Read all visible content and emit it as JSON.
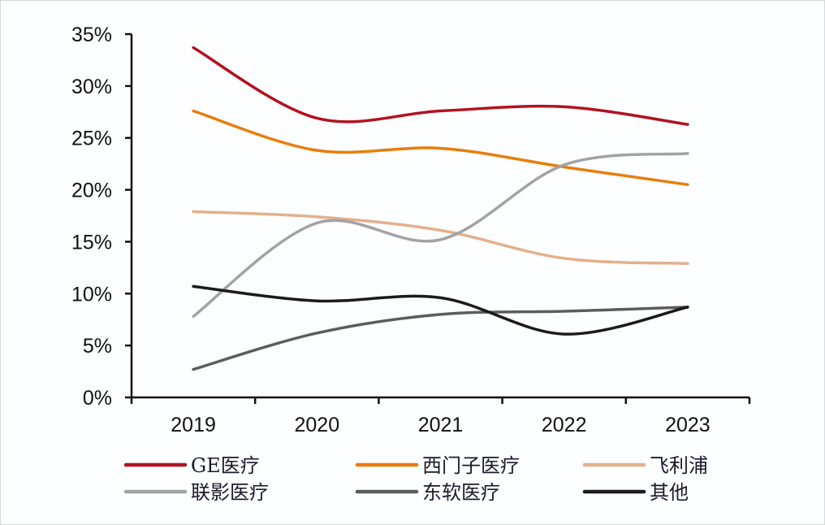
{
  "chart_data": {
    "type": "line",
    "title": "",
    "xlabel": "",
    "ylabel": "",
    "categories": [
      "2019",
      "2020",
      "2021",
      "2022",
      "2023"
    ],
    "ylim": [
      0,
      35
    ],
    "yticks": [
      0,
      5,
      10,
      15,
      20,
      25,
      30,
      35
    ],
    "ytick_labels": [
      "0%",
      "5%",
      "10%",
      "15%",
      "20%",
      "25%",
      "30%",
      "35%"
    ],
    "y_unit": "%",
    "grid": false,
    "smooth": true,
    "legend_position": "bottom",
    "series": [
      {
        "name": "GE医疗",
        "color": "#b3121f",
        "values": [
          33.7,
          26.9,
          27.6,
          28.0,
          26.3
        ]
      },
      {
        "name": "西门子医疗",
        "color": "#e87d0d",
        "values": [
          27.6,
          23.8,
          24.0,
          22.2,
          20.5
        ]
      },
      {
        "name": "飞利浦",
        "color": "#e3b08c",
        "values": [
          17.9,
          17.4,
          16.1,
          13.4,
          12.9
        ]
      },
      {
        "name": "联影医疗",
        "color": "#a3a3a6",
        "values": [
          7.8,
          16.8,
          15.2,
          22.4,
          23.5
        ]
      },
      {
        "name": "东软医疗",
        "color": "#5c5c5e",
        "values": [
          2.7,
          6.2,
          8.0,
          8.3,
          8.7
        ]
      },
      {
        "name": "其他",
        "color": "#1c1a1e",
        "values": [
          10.7,
          9.3,
          9.6,
          6.1,
          8.7
        ]
      }
    ]
  }
}
